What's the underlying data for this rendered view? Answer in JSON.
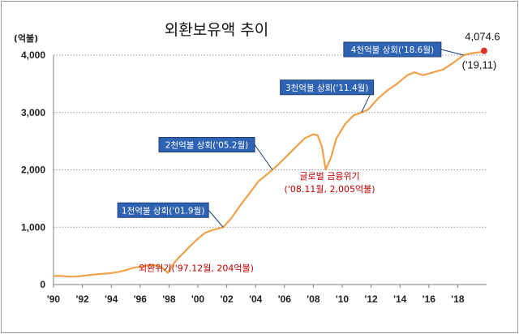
{
  "chart_data": {
    "type": "line",
    "title": "외환보유액 추이",
    "ylabel": "(억불)",
    "xlabel": "",
    "ylim": [
      0,
      4000
    ],
    "xlim": [
      1990,
      2020
    ],
    "yticks": [
      0,
      1000,
      2000,
      3000,
      4000
    ],
    "ytick_labels": [
      "0",
      "1,000",
      "2,000",
      "3,000",
      "4,000"
    ],
    "xtick_labels": [
      "'90",
      "'92",
      "'94",
      "'96",
      "'98",
      "'00",
      "'02",
      "'04",
      "'06",
      "'08",
      "'10",
      "'12",
      "'14",
      "'16",
      "'18"
    ],
    "xtick_years": [
      1990,
      1992,
      1994,
      1996,
      1998,
      2000,
      2002,
      2004,
      2006,
      2008,
      2010,
      2012,
      2014,
      2016,
      2018
    ],
    "grid": "horizontal-dotted",
    "series": [
      {
        "name": "",
        "color": "#f0a24a",
        "points": [
          [
            1990.0,
            150
          ],
          [
            1990.5,
            150
          ],
          [
            1991.0,
            140
          ],
          [
            1991.5,
            138
          ],
          [
            1992.0,
            150
          ],
          [
            1992.5,
            165
          ],
          [
            1993.0,
            180
          ],
          [
            1993.5,
            190
          ],
          [
            1994.0,
            200
          ],
          [
            1994.5,
            220
          ],
          [
            1995.0,
            250
          ],
          [
            1995.5,
            290
          ],
          [
            1996.0,
            310
          ],
          [
            1996.5,
            330
          ],
          [
            1996.9,
            340
          ],
          [
            1997.3,
            320
          ],
          [
            1997.6,
            280
          ],
          [
            1997.92,
            204
          ],
          [
            1998.2,
            330
          ],
          [
            1998.6,
            450
          ],
          [
            1999.0,
            550
          ],
          [
            1999.5,
            680
          ],
          [
            2000.0,
            800
          ],
          [
            2000.5,
            900
          ],
          [
            2001.0,
            950
          ],
          [
            2001.75,
            1000
          ],
          [
            2002.3,
            1150
          ],
          [
            2003.0,
            1400
          ],
          [
            2003.6,
            1600
          ],
          [
            2004.2,
            1800
          ],
          [
            2005.17,
            2000
          ],
          [
            2005.6,
            2100
          ],
          [
            2006.2,
            2250
          ],
          [
            2006.8,
            2400
          ],
          [
            2007.4,
            2550
          ],
          [
            2008.0,
            2620
          ],
          [
            2008.3,
            2600
          ],
          [
            2008.6,
            2400
          ],
          [
            2008.85,
            2005
          ],
          [
            2009.2,
            2200
          ],
          [
            2009.6,
            2550
          ],
          [
            2010.2,
            2800
          ],
          [
            2010.8,
            2950
          ],
          [
            2011.33,
            3000
          ],
          [
            2011.8,
            3050
          ],
          [
            2012.5,
            3250
          ],
          [
            2013.2,
            3400
          ],
          [
            2013.8,
            3500
          ],
          [
            2014.5,
            3650
          ],
          [
            2015.0,
            3700
          ],
          [
            2015.6,
            3650
          ],
          [
            2016.3,
            3700
          ],
          [
            2017.0,
            3750
          ],
          [
            2017.6,
            3850
          ],
          [
            2018.42,
            4000
          ],
          [
            2018.9,
            4030
          ],
          [
            2019.5,
            4050
          ],
          [
            2019.83,
            4074.6
          ]
        ]
      }
    ],
    "annotations": [
      {
        "label": "1천억불 상회('01.9월)",
        "x": 2001.75,
        "y": 1000
      },
      {
        "label": "2천억불 상회('05.2월)",
        "x": 2005.17,
        "y": 2000
      },
      {
        "label": "3천억불 상회('11.4월)",
        "x": 2011.33,
        "y": 3000
      },
      {
        "label": "4천억불 상회('18.6월)",
        "x": 2018.42,
        "y": 4000
      }
    ],
    "crisis_annotations": [
      {
        "lines": [
          "외환위기('97.12월, 204억불)"
        ],
        "x": 1997.92,
        "y": 204
      },
      {
        "lines": [
          "글로벌 금융위기",
          "('08.11월, 2,005억불)"
        ],
        "x": 2008.85,
        "y": 2005
      }
    ],
    "end_point": {
      "value_label": "4,074.6",
      "date_label": "('19,11)",
      "x": 2019.83,
      "y": 4074.6,
      "color": "#e0302a"
    },
    "colors": {
      "line": "#f0a24a",
      "box": "#2e63b4",
      "box_border": "#1f3f73",
      "crisis_text": "#c00000",
      "end_dot": "#e0302a"
    }
  }
}
